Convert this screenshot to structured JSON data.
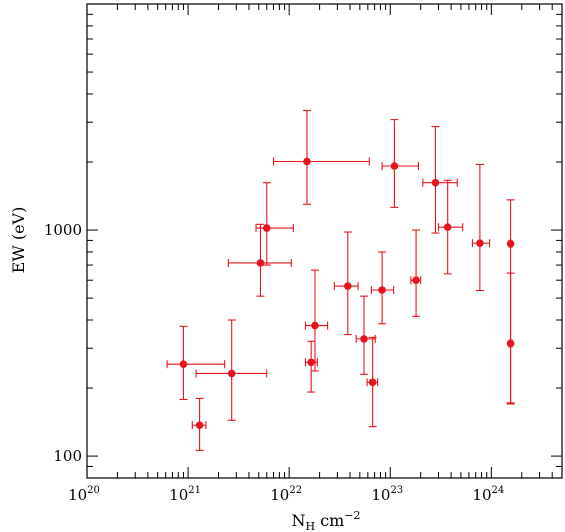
{
  "chart_data": {
    "type": "scatter",
    "xlabel": {
      "base": "N",
      "sub": "H",
      "unit": " cm",
      "sup": "−2"
    },
    "ylabel": "EW (eV)",
    "x_scale": "log",
    "y_scale": "log",
    "xlim": [
      1e+20,
      5e+24
    ],
    "ylim": [
      80,
      10000
    ],
    "x_ticks": [
      {
        "value": 1e+20,
        "base": "10",
        "exp": "20"
      },
      {
        "value": 1e+21,
        "base": "10",
        "exp": "21"
      },
      {
        "value": 1e+22,
        "base": "10",
        "exp": "22"
      },
      {
        "value": 1e+23,
        "base": "10",
        "exp": "23"
      },
      {
        "value": 1e+24,
        "base": "10",
        "exp": "24"
      }
    ],
    "y_ticks": [
      {
        "value": 100,
        "label": "100"
      },
      {
        "value": 1000,
        "label": "1000"
      }
    ],
    "grid": false,
    "marker_color": "#e8141c",
    "points": [
      {
        "x": 9e+20,
        "xerr": [
          6.2e+20,
          2.3e+21
        ],
        "y": 255,
        "yerr": [
          178,
          375
        ]
      },
      {
        "x": 1.3e+21,
        "xerr": [
          1.1e+21,
          1.5e+21
        ],
        "y": 137,
        "yerr": [
          106,
          180
        ]
      },
      {
        "x": 2.7e+21,
        "xerr": [
          1.2e+21,
          6e+21
        ],
        "y": 232,
        "yerr": [
          144,
          400
        ]
      },
      {
        "x": 5.2e+21,
        "xerr": [
          2.5e+21,
          1.05e+22
        ],
        "y": 715,
        "yerr": [
          510,
          1060
        ]
      },
      {
        "x": 6e+21,
        "xerr": [
          4.7e+21,
          1.1e+22
        ],
        "y": 1020,
        "yerr": [
          700,
          1620
        ]
      },
      {
        "x": 1.5e+22,
        "xerr": [
          7e+21,
          6.2e+22
        ],
        "y": 2010,
        "yerr": [
          1300,
          3380
        ]
      },
      {
        "x": 1.65e+22,
        "xerr": [
          1.45e+22,
          1.9e+22
        ],
        "y": 260,
        "yerr": [
          192,
          322
        ]
      },
      {
        "x": 1.8e+22,
        "xerr": [
          1.45e+22,
          2.4e+22
        ],
        "y": 378,
        "yerr": [
          238,
          665
        ]
      },
      {
        "x": 3.8e+22,
        "xerr": [
          2.8e+22,
          4.8e+22
        ],
        "y": 565,
        "yerr": [
          345,
          980
        ]
      },
      {
        "x": 5.5e+22,
        "xerr": [
          4.6e+22,
          7.1e+22
        ],
        "y": 330,
        "yerr": [
          230,
          510
        ]
      },
      {
        "x": 6.7e+22,
        "xerr": [
          5.9e+22,
          7.5e+22
        ],
        "y": 212,
        "yerr": [
          135,
          335
        ]
      },
      {
        "x": 8.3e+22,
        "xerr": [
          6.5e+22,
          1.08e+23
        ],
        "y": 543,
        "yerr": [
          385,
          800
        ]
      },
      {
        "x": 1.1e+23,
        "xerr": [
          8.3e+22,
          1.9e+23
        ],
        "y": 1920,
        "yerr": [
          1260,
          3080
        ]
      },
      {
        "x": 1.8e+23,
        "xerr": [
          1.6e+23,
          2e+23
        ],
        "y": 600,
        "yerr": [
          415,
          1000
        ]
      },
      {
        "x": 2.8e+23,
        "xerr": [
          2.1e+23,
          4.6e+23
        ],
        "y": 1620,
        "yerr": [
          970,
          2870
        ]
      },
      {
        "x": 3.7e+23,
        "xerr": [
          3e+23,
          5.2e+23
        ],
        "y": 1030,
        "yerr": [
          640,
          1660
        ]
      },
      {
        "x": 7.7e+23,
        "xerr": [
          6.5e+23,
          9.6e+23
        ],
        "y": 875,
        "yerr": [
          540,
          1950
        ]
      },
      {
        "x": 1.55e+24,
        "xerr": [
          1.5e+24,
          1.6e+24
        ],
        "y": 870,
        "yerr": [
          170,
          1360
        ]
      },
      {
        "x": 1.55e+24,
        "xerr": [
          1.5e+24,
          1.6e+24
        ],
        "y": 315,
        "yerr": [
          172,
          645
        ]
      }
    ]
  }
}
